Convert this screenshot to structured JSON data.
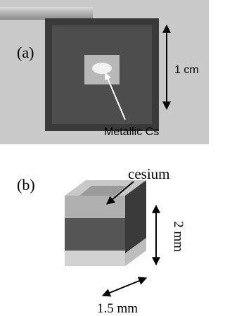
{
  "panel_a": {
    "label": "(a)",
    "scale_label": "1 cm",
    "annotation": "Metallic Cs"
  },
  "panel_b": {
    "label": "(b)",
    "annotation": "cesium",
    "height_label": "2 mm",
    "width_label": "1.5 mm"
  }
}
